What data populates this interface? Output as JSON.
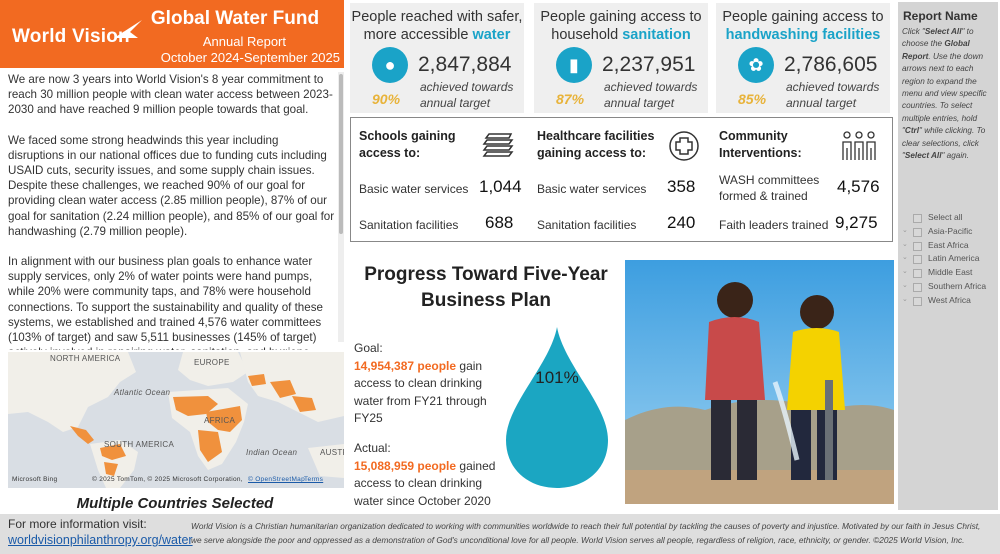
{
  "header": {
    "logo_text": "World Vision",
    "title": "Global Water Fund",
    "subtitle": "Annual Report",
    "period": "October 2024-September 2025"
  },
  "intro": {
    "p1": "We are now 3 years into World Vision's 8 year commitment to reach 30 million people with clean water access between 2023-2030 and have reached 9 million people towards that goal.",
    "p2": "We faced some strong headwinds this year including disruptions in our national offices due to funding cuts including USAID cuts, security issues, and some supply chain issues.  Despite these challenges, we reached 90% of our goal for providing clean water access (2.85 million people), 87% of our goal for sanitation (2.24 million people), and 85% of our goal for handwashing (2.79 million people).",
    "p3": "In alignment with our business plan goals to enhance water supply services, only 2% of water points were hand pumps, while 20% were community taps, and 78% were household connections. To support the sustainability and quality of these systems, we established and trained 4,576 water committees (103% of target) and saw 5,511 businesses (145% of target) actively involved in repairing water, sanitation, and hygiene"
  },
  "map": {
    "labels": {
      "north_america": "NORTH AMERICA",
      "europe": "EUROPE",
      "atlantic": "Atlantic Ocean",
      "africa": "AFRICA",
      "south_america": "SOUTH AMERICA",
      "indian": "Indian Ocean",
      "austr": "AUSTR"
    },
    "bing": "Microsoft Bing",
    "attribution": "© 2025 TomTom, © 2025 Microsoft Corporation,",
    "osm": "© OpenStreetMap",
    "terms": "Terms",
    "caption": "Multiple Countries Selected"
  },
  "kpis": [
    {
      "head_pre": "People reached with safer, more accessible",
      "head_hl": "water",
      "value": "2,847,884",
      "pct": "90%",
      "achieved": "achieved towards annual target",
      "icon": "water-drop-icon",
      "glyph": "💧"
    },
    {
      "head_pre": "People gaining access to household",
      "head_hl": "sanitation",
      "value": "2,237,951",
      "pct": "87%",
      "achieved": "achieved towards annual target",
      "icon": "toilet-icon",
      "glyph": "🚽"
    },
    {
      "head_pre": "People gaining access to",
      "head_hl": "handwashing facilities",
      "value": "2,786,605",
      "pct": "85%",
      "achieved": "achieved towards annual target",
      "icon": "handwashing-icon",
      "glyph": "👐"
    }
  ],
  "services": {
    "schools": {
      "title": "Schools gaining access to:",
      "r1_label": "Basic water services",
      "r1_val": "1,044",
      "r2_label": "Sanitation facilities",
      "r2_val": "688"
    },
    "health": {
      "title": "Healthcare facilities gaining access to:",
      "r1_label": "Basic water services",
      "r1_val": "358",
      "r2_label": "Sanitation facilities",
      "r2_val": "240"
    },
    "community": {
      "title": "Community Interventions:",
      "r1_label": "WASH committees formed & trained",
      "r1_val": "4,576",
      "r2_label": "Faith leaders trained",
      "r2_val": "9,275"
    }
  },
  "progress": {
    "title": "Progress Toward Five-Year Business Plan",
    "goal_label": "Goal:",
    "goal_value": "14,954,387 people",
    "goal_text": "gain access to clean drinking water from FY21 through FY25",
    "actual_label": "Actual:",
    "actual_value": "15,088,959 people",
    "actual_text": "gained access to clean drinking water since October 2020",
    "percent": "101%"
  },
  "report": {
    "title": "Report Name",
    "desc_1": "Click \"",
    "desc_select_all": "Select All",
    "desc_2": "\" to choose the ",
    "desc_global": "Global Report",
    "desc_3": ". Use the down arrows next to each region to expand the menu and view specific countries. To select multiple entries, hold \"",
    "desc_ctrl": "Ctrl",
    "desc_4": "\" while clicking. To clear selections, click \"",
    "desc_select_all_2": "Select All",
    "desc_5": "\" again.",
    "regions": [
      "Select all",
      "Asia-Pacific",
      "East Africa",
      "Latin America",
      "Middle East",
      "Southern Africa",
      "West Africa"
    ]
  },
  "footer": {
    "info": "For more information visit:",
    "link": "worldvisionphilanthropy.org/water",
    "disclaimer": "World Vision is a Christian humanitarian organization dedicated to working with communities worldwide to reach their full potential by tackling the causes of poverty and injustice. Motivated by our faith in Jesus Christ, we serve alongside the poor and oppressed as a demonstration of God's unconditional love for all people. World Vision serves all people, regardless of religion, race, ethnicity, or gender.  ©2025 World Vision, Inc."
  },
  "colors": {
    "orange": "#f26a21",
    "teal": "#1aa3c8",
    "gold": "#e8b33a"
  }
}
